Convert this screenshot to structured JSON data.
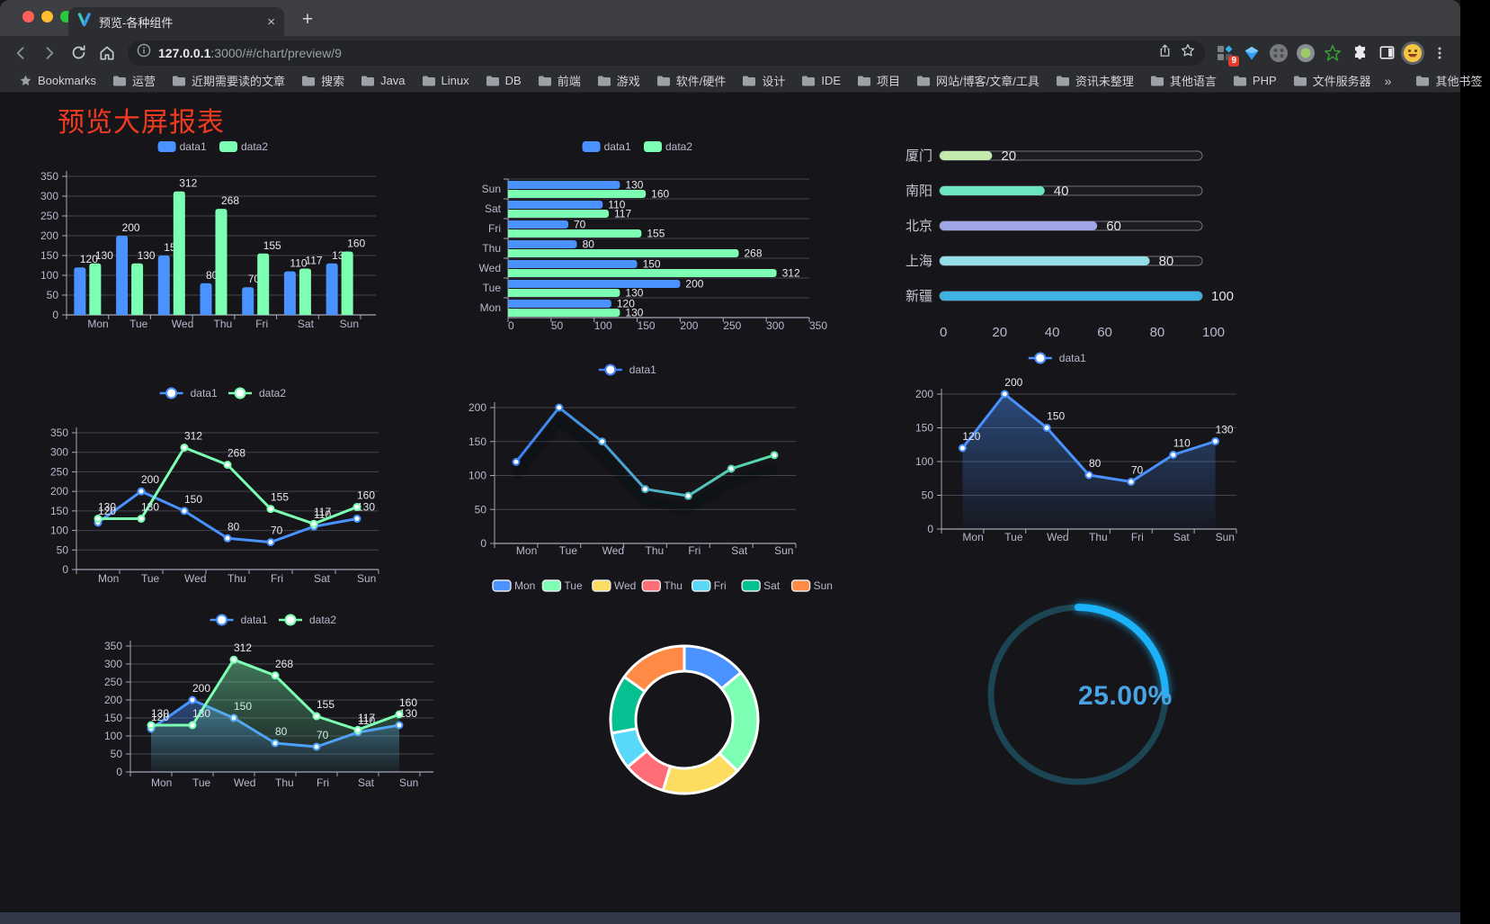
{
  "browser": {
    "tab": {
      "title": "预览-各种组件",
      "close": "×"
    },
    "new_tab": "+",
    "url": {
      "host": "127.0.0.1",
      "rest": ":3000/#/chart/preview/9"
    },
    "extension_badge": "9",
    "bookmarks": {
      "bar_label": "Bookmarks",
      "folders": [
        "运营",
        "近期需要读的文章",
        "搜索",
        "Java",
        "Linux",
        "DB",
        "前端",
        "游戏",
        "软件/硬件",
        "设计",
        "IDE",
        "项目",
        "网站/博客/文章/工具",
        "资讯未整理",
        "其他语言",
        "PHP",
        "文件服务器"
      ],
      "overflow": "»",
      "other_bookmarks": "其他书签"
    }
  },
  "page": {
    "title": "预览大屏报表"
  },
  "chart_data": [
    {
      "id": "bar-grouped",
      "type": "bar",
      "categories": [
        "Mon",
        "Tue",
        "Wed",
        "Thu",
        "Fri",
        "Sat",
        "Sun"
      ],
      "series": [
        {
          "name": "data1",
          "color": "#4992ff",
          "values": [
            120,
            200,
            150,
            80,
            70,
            110,
            130
          ]
        },
        {
          "name": "data2",
          "color": "#7cffb2",
          "values": [
            130,
            130,
            312,
            268,
            155,
            117,
            160
          ]
        }
      ],
      "ylim": [
        0,
        350
      ],
      "yticks": [
        0,
        50,
        100,
        150,
        200,
        250,
        300,
        350
      ],
      "labels": true,
      "legend_position": "top"
    },
    {
      "id": "hbar-grouped",
      "type": "bar-horizontal",
      "categories_top_to_bottom": [
        "Sun",
        "Sat",
        "Fri",
        "Thu",
        "Wed",
        "Tue",
        "Mon"
      ],
      "series": [
        {
          "name": "data1",
          "color": "#4992ff",
          "values_top_to_bottom": [
            130,
            110,
            70,
            80,
            150,
            200,
            120
          ]
        },
        {
          "name": "data2",
          "color": "#7cffb2",
          "values_top_to_bottom": [
            160,
            117,
            155,
            268,
            312,
            130,
            130
          ]
        }
      ],
      "xlim": [
        0,
        350
      ],
      "xticks": [
        0,
        50,
        100,
        150,
        200,
        250,
        300,
        350
      ],
      "labels": true,
      "legend_position": "top"
    },
    {
      "id": "progress-list",
      "type": "bar-pictorial",
      "items": [
        {
          "label": "厦门",
          "value": 20,
          "color": "#c4ebad"
        },
        {
          "label": "南阳",
          "value": 40,
          "color": "#6be6c1"
        },
        {
          "label": "北京",
          "value": 60,
          "color": "#a0a7e6"
        },
        {
          "label": "上海",
          "value": 80,
          "color": "#96dee8"
        },
        {
          "label": "新疆",
          "value": 100,
          "color": "#3fb1e3"
        }
      ],
      "xlim": [
        0,
        100
      ],
      "xticks": [
        0,
        20,
        40,
        60,
        80,
        100
      ]
    },
    {
      "id": "line-dual",
      "type": "line",
      "categories": [
        "Mon",
        "Tue",
        "Wed",
        "Thu",
        "Fri",
        "Sat",
        "Sun"
      ],
      "series": [
        {
          "name": "data1",
          "color": "#4992ff",
          "values": [
            120,
            200,
            150,
            80,
            70,
            110,
            130
          ]
        },
        {
          "name": "data2",
          "color": "#7cffb2",
          "values": [
            130,
            130,
            312,
            268,
            155,
            117,
            160
          ]
        }
      ],
      "ylim": [
        0,
        350
      ],
      "yticks": [
        0,
        50,
        100,
        150,
        200,
        250,
        300,
        350
      ],
      "labels": true,
      "legend_position": "top"
    },
    {
      "id": "line-gradient",
      "type": "line",
      "categories": [
        "Mon",
        "Tue",
        "Wed",
        "Thu",
        "Fri",
        "Sat",
        "Sun"
      ],
      "series": [
        {
          "name": "data1",
          "gradient": [
            "#3e7ef7",
            "#58dfa2"
          ],
          "values": [
            120,
            200,
            150,
            80,
            70,
            110,
            130
          ]
        }
      ],
      "ylim": [
        0,
        200
      ],
      "yticks": [
        0,
        50,
        100,
        150,
        200
      ],
      "labels": false,
      "shadow": true,
      "legend_position": "top"
    },
    {
      "id": "area-single",
      "type": "area",
      "categories": [
        "Mon",
        "Tue",
        "Wed",
        "Thu",
        "Fri",
        "Sat",
        "Sun"
      ],
      "series": [
        {
          "name": "data1",
          "color": "#4992ff",
          "values": [
            120,
            200,
            150,
            80,
            70,
            110,
            130
          ],
          "area": true
        }
      ],
      "ylim": [
        0,
        200
      ],
      "yticks": [
        0,
        50,
        100,
        150,
        200
      ],
      "labels": true,
      "legend_position": "top"
    },
    {
      "id": "area-dual",
      "type": "area",
      "categories": [
        "Mon",
        "Tue",
        "Wed",
        "Thu",
        "Fri",
        "Sat",
        "Sun"
      ],
      "series": [
        {
          "name": "data1",
          "color": "#4992ff",
          "values": [
            120,
            200,
            150,
            80,
            70,
            110,
            130
          ],
          "area": true
        },
        {
          "name": "data2",
          "color": "#7cffb2",
          "values": [
            130,
            130,
            312,
            268,
            155,
            117,
            160
          ],
          "area": true
        }
      ],
      "ylim": [
        0,
        350
      ],
      "yticks": [
        0,
        50,
        100,
        150,
        200,
        250,
        300,
        350
      ],
      "labels": true,
      "legend_position": "top"
    },
    {
      "id": "donut",
      "type": "pie",
      "items": [
        {
          "label": "Mon",
          "value": 120,
          "color": "#4992ff"
        },
        {
          "label": "Tue",
          "value": 200,
          "color": "#7cffb2"
        },
        {
          "label": "Wed",
          "value": 150,
          "color": "#fddd60"
        },
        {
          "label": "Thu",
          "value": 80,
          "color": "#ff6e76"
        },
        {
          "label": "Fri",
          "value": 70,
          "color": "#58d9f9"
        },
        {
          "label": "Sat",
          "value": 110,
          "color": "#05c091"
        },
        {
          "label": "Sun",
          "value": 130,
          "color": "#ff8a45"
        }
      ],
      "legend_position": "top"
    },
    {
      "id": "gauge",
      "type": "gauge",
      "value": 25,
      "display": "25.00%",
      "track_color": "#1b4552",
      "progress_color": "#1db2f9",
      "text_color": "#4aa4e4"
    }
  ]
}
